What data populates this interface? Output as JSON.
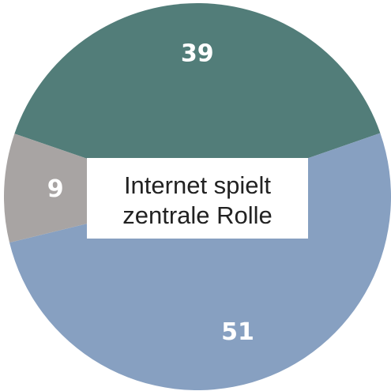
{
  "chart_data": {
    "type": "pie",
    "title": [
      "Internet spielt",
      "zentrale Rolle"
    ],
    "categories": [
      null,
      null,
      null
    ],
    "values": [
      39,
      51,
      9
    ],
    "colors": [
      "#527d79",
      "#87a0c1",
      "#a8a4a3"
    ]
  }
}
